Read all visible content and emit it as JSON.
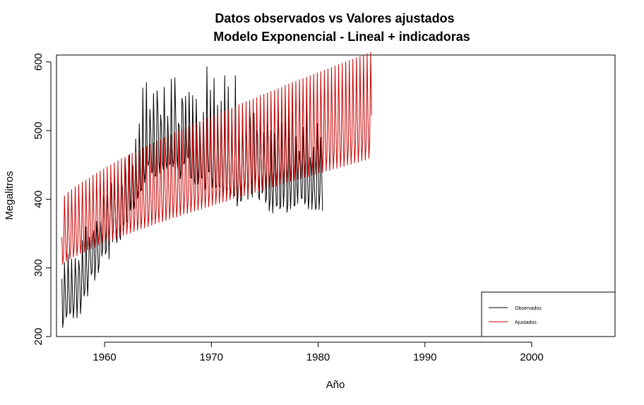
{
  "chart_data": {
    "type": "line",
    "title": "Datos observados vs Valores ajustados",
    "subtitle": "Modelo Exponencial - Lineal + indicadoras",
    "xlabel": "Año",
    "ylabel": "Megalitros",
    "xlim": [
      1955.5,
      2007.8
    ],
    "ylim": [
      200,
      610
    ],
    "x_ticks": [
      1960,
      1970,
      1980,
      1990,
      2000
    ],
    "y_ticks": [
      200,
      300,
      400,
      500,
      600
    ],
    "grid": false,
    "legend_position": "bottom-right",
    "start": 1956.0,
    "frequency": 12,
    "series": [
      {
        "name": "Observados",
        "color": "#000000",
        "values": [
          284,
          213,
          227,
          308,
          262,
          228,
          236,
          320,
          272,
          233,
          237,
          313,
          261,
          227,
          250,
          314,
          286,
          227,
          260,
          311,
          295,
          233,
          257,
          340,
          293,
          259,
          267,
          360,
          299,
          259,
          295,
          345,
          325,
          290,
          294,
          345,
          355,
          282,
          306,
          368,
          346,
          293,
          307,
          345,
          368,
          317,
          329,
          405,
          390,
          320,
          326,
          406,
          382,
          313,
          368,
          411,
          423,
          338,
          360,
          431,
          387,
          347,
          337,
          434,
          407,
          347,
          341,
          427,
          418,
          362,
          366,
          461,
          438,
          367,
          366,
          447,
          465,
          384,
          399,
          445,
          449,
          386,
          397,
          488,
          433,
          401,
          413,
          510,
          460,
          412,
          416,
          562,
          450,
          424,
          441,
          570,
          456,
          449,
          458,
          531,
          495,
          438,
          444,
          554,
          490,
          433,
          436,
          558,
          528,
          455,
          438,
          523,
          506,
          454,
          443,
          563,
          491,
          454,
          445,
          521,
          480,
          450,
          453,
          575,
          475,
          447,
          460,
          577,
          520,
          465,
          445,
          511,
          506,
          430,
          441,
          547,
          539,
          451,
          455,
          550,
          489,
          463,
          460,
          556,
          487,
          432,
          430,
          551,
          479,
          427,
          421,
          546,
          486,
          422,
          444,
          513,
          474,
          432,
          430,
          527,
          471,
          414,
          424,
          593,
          475,
          440,
          440,
          559,
          463,
          417,
          433,
          576,
          466,
          417,
          421,
          537,
          469,
          418,
          419,
          543,
          470,
          410,
          415,
          580,
          462,
          413,
          413,
          564,
          458,
          402,
          409,
          529,
          444,
          408,
          405,
          580,
          436,
          390,
          406,
          529,
          430,
          397,
          400,
          531,
          451,
          418,
          421,
          508,
          478,
          400,
          427,
          534,
          510,
          426,
          403,
          526,
          525,
          415,
          438,
          500,
          495,
          405,
          399,
          525,
          467,
          409,
          413,
          497,
          458,
          395,
          403,
          512,
          483,
          383,
          399,
          500,
          420,
          380,
          415,
          496,
          434,
          390,
          392,
          521,
          482,
          386,
          390,
          512,
          460,
          389,
          419,
          519,
          474,
          381,
          391,
          536,
          432,
          386,
          418,
          570,
          455,
          390,
          392,
          491,
          426,
          394,
          451,
          470,
          445,
          402,
          401,
          505,
          456,
          393,
          400,
          560,
          442,
          386,
          404,
          461,
          445,
          385,
          415,
          476,
          410,
          385,
          389,
          510,
          465,
          385,
          410,
          490,
          440,
          383
        ]
      },
      {
        "name": "Ajustados",
        "color": "#cc0000",
        "values": [
          345,
          305,
          320,
          405,
          353,
          310,
          325,
          410,
          356,
          313,
          328,
          414,
          358,
          316,
          331,
          418,
          361,
          318,
          334,
          421,
          364,
          321,
          337,
          425,
          366,
          323,
          340,
          428,
          369,
          326,
          342,
          431,
          371,
          328,
          345,
          435,
          374,
          330,
          347,
          438,
          376,
          333,
          350,
          441,
          378,
          335,
          352,
          444,
          381,
          337,
          354,
          447,
          383,
          339,
          357,
          450,
          385,
          341,
          359,
          453,
          387,
          343,
          361,
          456,
          390,
          345,
          364,
          459,
          392,
          347,
          366,
          461,
          394,
          349,
          368,
          464,
          396,
          351,
          370,
          467,
          398,
          353,
          372,
          469,
          400,
          355,
          374,
          472,
          402,
          357,
          376,
          475,
          404,
          358,
          378,
          477,
          406,
          360,
          380,
          480,
          408,
          362,
          382,
          482,
          410,
          364,
          384,
          485,
          412,
          366,
          386,
          487,
          414,
          367,
          388,
          490,
          416,
          369,
          390,
          492,
          418,
          371,
          392,
          494,
          420,
          373,
          393,
          497,
          422,
          374,
          395,
          499,
          424,
          376,
          397,
          502,
          426,
          378,
          399,
          504,
          428,
          379,
          401,
          506,
          430,
          381,
          402,
          509,
          432,
          383,
          404,
          511,
          434,
          384,
          406,
          513,
          436,
          386,
          408,
          515,
          437,
          388,
          409,
          518,
          439,
          389,
          411,
          520,
          441,
          391,
          413,
          522,
          443,
          393,
          415,
          524,
          445,
          394,
          416,
          527,
          447,
          396,
          418,
          529,
          449,
          397,
          420,
          531,
          450,
          399,
          421,
          533,
          452,
          401,
          423,
          535,
          454,
          402,
          425,
          538,
          456,
          404,
          427,
          540,
          458,
          405,
          428,
          542,
          460,
          407,
          430,
          544,
          461,
          408,
          432,
          546,
          463,
          410,
          433,
          548,
          465,
          412,
          435,
          551,
          467,
          413,
          437,
          553,
          469,
          415,
          439,
          555,
          471,
          416,
          440,
          557,
          472,
          418,
          442,
          559,
          474,
          419,
          444,
          561,
          476,
          421,
          445,
          563,
          478,
          422,
          447,
          566,
          480,
          424,
          449,
          568,
          481,
          426,
          450,
          570,
          483,
          427,
          452,
          572,
          485,
          429,
          454,
          574,
          487,
          430,
          455,
          576,
          489,
          432,
          457,
          578,
          490,
          433,
          459,
          580,
          492,
          435,
          460,
          582,
          494,
          436,
          462,
          584,
          496,
          438,
          464,
          586,
          497,
          439,
          465,
          588,
          499,
          441,
          467,
          590,
          501,
          442,
          469,
          592,
          503,
          444,
          470,
          594,
          504,
          445,
          472,
          596,
          506,
          447,
          474,
          598,
          508,
          448,
          475,
          600,
          510,
          450,
          477,
          602,
          511,
          451,
          479,
          604,
          513,
          453,
          480,
          606,
          515,
          454,
          482,
          608,
          517,
          456,
          484,
          610,
          518,
          457,
          485,
          612,
          520,
          459,
          487,
          614,
          522
        ]
      }
    ]
  }
}
